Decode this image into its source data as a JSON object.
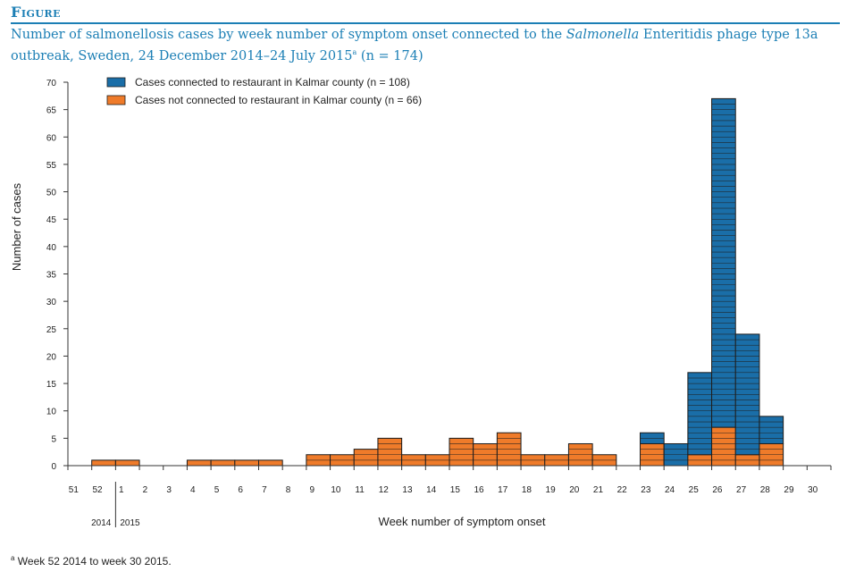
{
  "figure_label": "Figure",
  "title": {
    "part1": "Number of salmonellosis cases by week number of symptom onset connected to the ",
    "italic": "Salmonella",
    "part2": " Enteritidis phage type 13a outbreak, Sweden, 24 December 2014–24 July 2015",
    "sup": "a",
    "part3": " (n = 174)"
  },
  "footnote": {
    "sup": "a",
    "text": " Week 52 2014 to week 30 2015."
  },
  "colors": {
    "connected": "#1a6ea8",
    "not_connected": "#ef7b2a",
    "axis": "#333333",
    "text": "#222222"
  },
  "chart_data": {
    "type": "bar",
    "stacked": true,
    "categories": [
      "51",
      "52",
      "1",
      "2",
      "3",
      "4",
      "5",
      "6",
      "7",
      "8",
      "9",
      "10",
      "11",
      "12",
      "13",
      "14",
      "15",
      "16",
      "17",
      "18",
      "19",
      "20",
      "21",
      "22",
      "23",
      "24",
      "25",
      "26",
      "27",
      "28",
      "29",
      "30"
    ],
    "series": [
      {
        "name": "Cases not connected to restaurant in Kalmar county (n = 66)",
        "values": [
          0,
          1,
          1,
          0,
          0,
          1,
          1,
          1,
          1,
          0,
          2,
          2,
          3,
          5,
          2,
          2,
          5,
          4,
          6,
          2,
          2,
          4,
          2,
          0,
          4,
          0,
          2,
          7,
          2,
          4,
          0,
          0
        ]
      },
      {
        "name": "Cases connected to restaurant in Kalmar county (n = 108)",
        "values": [
          0,
          0,
          0,
          0,
          0,
          0,
          0,
          0,
          0,
          0,
          0,
          0,
          0,
          0,
          0,
          0,
          0,
          0,
          0,
          0,
          0,
          0,
          0,
          0,
          2,
          4,
          15,
          60,
          22,
          5,
          0,
          0
        ]
      }
    ],
    "ylabel": "Number of cases",
    "xlabel": "Week number of symptom onset",
    "ylim": [
      0,
      70
    ],
    "yticks": [
      0,
      5,
      10,
      15,
      20,
      25,
      30,
      35,
      40,
      45,
      50,
      55,
      60,
      65,
      70
    ],
    "year_labels": [
      "2014",
      "2015"
    ],
    "legend_position": "top-left",
    "grid": false
  }
}
